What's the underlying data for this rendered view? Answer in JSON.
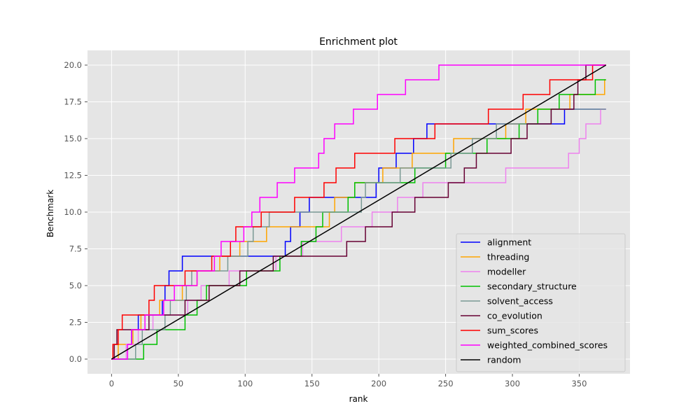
{
  "chart_data": {
    "type": "line",
    "title": "Enrichment plot",
    "xlabel": "rank",
    "ylabel": "Benchmark",
    "xlim": [
      -18,
      388
    ],
    "ylim": [
      -1,
      21
    ],
    "xticks": [
      0,
      50,
      100,
      150,
      200,
      250,
      300,
      350
    ],
    "yticks": [
      0.0,
      2.5,
      5.0,
      7.5,
      10.0,
      12.5,
      15.0,
      17.5,
      20.0
    ],
    "xtick_labels": [
      "0",
      "50",
      "100",
      "150",
      "200",
      "250",
      "300",
      "350"
    ],
    "ytick_labels": [
      "0.0",
      "2.5",
      "5.0",
      "7.5",
      "10.0",
      "12.5",
      "15.0",
      "17.5",
      "20.0"
    ],
    "grid": true,
    "legend_position": "lower right",
    "series": [
      {
        "name": "alignment",
        "color": "#0000ff",
        "steps": [
          12,
          15,
          20,
          38,
          40,
          43,
          53,
          130,
          134,
          141,
          148,
          198,
          200,
          213,
          226,
          236,
          339
        ],
        "end": 370
      },
      {
        "name": "threading",
        "color": "#ffa500",
        "steps": [
          5,
          16,
          22,
          36,
          53,
          64,
          81,
          96,
          116,
          163,
          167,
          182,
          203,
          225,
          256,
          295,
          310,
          343,
          369
        ],
        "end": 370
      },
      {
        "name": "modeller",
        "color": "#ee82ee",
        "steps": [
          11,
          20,
          31,
          57,
          67,
          88,
          123,
          143,
          172,
          195,
          214,
          233,
          295,
          342,
          350,
          355,
          366
        ],
        "end": 370
      },
      {
        "name": "secondary_structure",
        "color": "#00c000",
        "steps": [
          24,
          34,
          55,
          64,
          71,
          101,
          126,
          142,
          153,
          158,
          177,
          182,
          227,
          250,
          281,
          305,
          319,
          335,
          362
        ],
        "end": 370
      },
      {
        "name": "solvent_access",
        "color": "#7a9a95",
        "steps": [
          18,
          23,
          40,
          44,
          56,
          60,
          87,
          102,
          106,
          118,
          187,
          190,
          216,
          254,
          270,
          288,
          329
        ],
        "end": 370
      },
      {
        "name": "co_evolution",
        "color": "#660033",
        "steps": [
          2,
          4,
          28,
          55,
          73,
          96,
          121,
          176,
          190,
          210,
          227,
          252,
          264,
          273,
          299,
          311,
          329,
          346,
          349,
          355
        ],
        "end": 370
      },
      {
        "name": "sum_scores",
        "color": "#ff0000",
        "steps": [
          1,
          5,
          8,
          28,
          32,
          55,
          75,
          89,
          93,
          112,
          137,
          159,
          168,
          182,
          212,
          242,
          282,
          308,
          328,
          360
        ],
        "end": 370
      },
      {
        "name": "weighted_combined_scores",
        "color": "#ff00ff",
        "steps": [
          12,
          15,
          25,
          39,
          47,
          64,
          77,
          82,
          99,
          105,
          111,
          124,
          137,
          155,
          159,
          167,
          181,
          199,
          220,
          245
        ],
        "end": 370
      },
      {
        "name": "random",
        "color": "#000000",
        "line": {
          "x": [
            0,
            370
          ],
          "y": [
            0,
            20
          ]
        }
      }
    ]
  }
}
